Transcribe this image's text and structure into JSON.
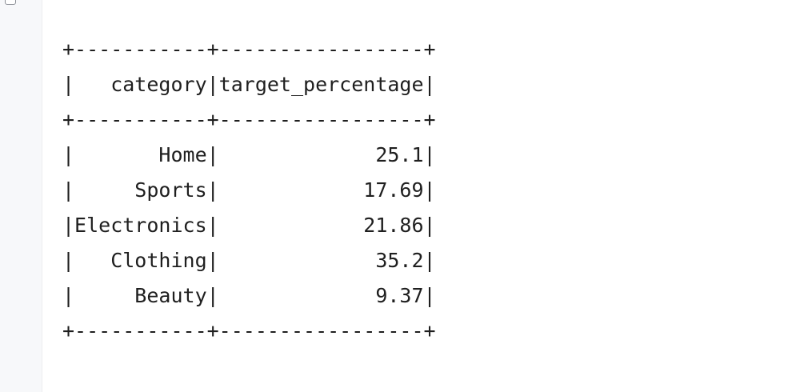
{
  "output": {
    "lines": [
      "+-----------+-----------------+",
      "|   category|target_percentage|",
      "+-----------+-----------------+",
      "|       Home|             25.1|",
      "|     Sports|            17.69|",
      "|Electronics|            21.86|",
      "|   Clothing|             35.2|",
      "|     Beauty|             9.37|",
      "+-----------+-----------------+"
    ]
  },
  "table": {
    "columns": [
      "category",
      "target_percentage"
    ],
    "rows": [
      [
        "Home",
        "25.1"
      ],
      [
        "Sports",
        "17.69"
      ],
      [
        "Electronics",
        "21.86"
      ],
      [
        "Clothing",
        "35.2"
      ],
      [
        "Beauty",
        "9.37"
      ]
    ]
  }
}
